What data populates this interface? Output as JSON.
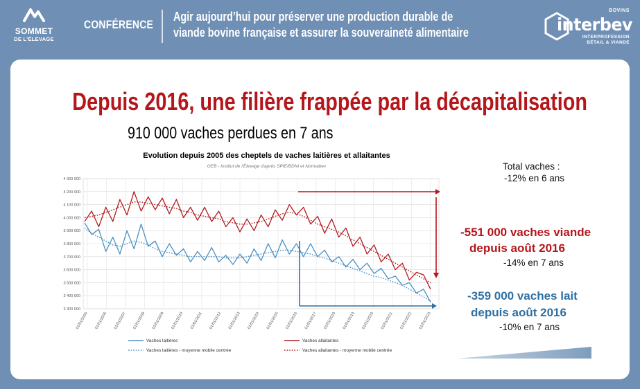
{
  "header": {
    "logo_left_line1": "SOMMET",
    "logo_left_line2": "DE L'ÉLEVAGE",
    "section_label": "CONFÉRENCE",
    "headline_line1": "Agir aujourd’hui pour préserver une production durable de",
    "headline_line2": "viande bovine française et assurer la souveraineté alimentaire",
    "logo_right_top": "BOVINS",
    "logo_right_word": "interbev",
    "logo_right_sub1": "INTERPROFESSION",
    "logo_right_sub2": "BÉTAIL & VIANDE"
  },
  "slide": {
    "title": "Depuis 2016, une filière frappée par la décapitalisation",
    "subtitle": "910 000 vaches perdues en 7 ans"
  },
  "side_notes": {
    "total_label": "Total vaches :",
    "total_value": "-12% en 6 ans",
    "viande_line1": "-551 000 vaches viande",
    "viande_line2": "depuis août 2016",
    "viande_pct": "-14% en 7 ans",
    "lait_line1": "-359 000 vaches lait",
    "lait_line2": "depuis août 2016",
    "lait_pct": "-10% en 7 ans"
  },
  "colors": {
    "accent_red": "#b5161b",
    "dairy_blue": "#4a90c4",
    "suckler_red": "#b2191c",
    "arrow_blue": "#2f6fa2",
    "header_bg": "#6f8fb4"
  },
  "chart_data": {
    "type": "line",
    "title": "Evolution depuis 2005 des cheptels de vaches laitières et allaitantes",
    "subtitle": "GEB - Institut de l'Élevage d'après SPIE/BDNI et Normabev",
    "ylim": [
      3300000,
      4300000
    ],
    "y_ticks": [
      "3 300 000",
      "3 400 000",
      "3 500 000",
      "3 600 000",
      "3 700 000",
      "3 800 000",
      "3 900 000",
      "4 000 000",
      "4 100 000",
      "4 200 000",
      "4 300 000"
    ],
    "x_ticks": [
      "01/01/2005",
      "01/01/2006",
      "01/01/2007",
      "01/01/2008",
      "01/01/2009",
      "01/01/2010",
      "01/01/2011",
      "01/01/2012",
      "01/01/2013",
      "01/01/2014",
      "01/01/2015",
      "01/01/2016",
      "01/01/2017",
      "01/01/2018",
      "01/01/2019",
      "01/01/2020",
      "01/01/2021",
      "01/01/2022",
      "01/01/2023"
    ],
    "grid": true,
    "legend_position": "bottom",
    "series": [
      {
        "name": "Vaches laitières",
        "style": "solid",
        "color": "#4a90c4",
        "values": [
          3960000,
          3870000,
          3910000,
          3740000,
          3850000,
          3720000,
          3900000,
          3760000,
          3950000,
          3780000,
          3820000,
          3700000,
          3800000,
          3710000,
          3760000,
          3660000,
          3740000,
          3670000,
          3770000,
          3660000,
          3710000,
          3640000,
          3720000,
          3650000,
          3760000,
          3670000,
          3800000,
          3690000,
          3830000,
          3720000,
          3800000,
          3700000,
          3800000,
          3700000,
          3750000,
          3660000,
          3700000,
          3620000,
          3680000,
          3600000,
          3650000,
          3570000,
          3610000,
          3530000,
          3550000,
          3480000,
          3500000,
          3420000,
          3450000,
          3350000
        ]
      },
      {
        "name": "Vaches allaitantes",
        "style": "solid",
        "color": "#b2191c",
        "values": [
          3970000,
          4050000,
          3930000,
          4080000,
          3970000,
          4140000,
          4020000,
          4200000,
          4050000,
          4160000,
          4060000,
          4150000,
          4030000,
          4140000,
          4000000,
          4080000,
          3980000,
          4080000,
          3970000,
          4050000,
          3930000,
          4000000,
          3890000,
          3990000,
          3900000,
          4020000,
          3930000,
          4060000,
          3980000,
          4100000,
          4020000,
          4080000,
          3950000,
          4010000,
          3880000,
          3990000,
          3850000,
          3920000,
          3780000,
          3850000,
          3720000,
          3790000,
          3660000,
          3720000,
          3600000,
          3650000,
          3520000,
          3580000,
          3560000,
          3450000
        ]
      },
      {
        "name": "Vaches laitières - moyenne mobile centrée",
        "style": "dotted",
        "color": "#4a90c4",
        "values": [
          3920000,
          3880000,
          3850000,
          3820000,
          3790000,
          3780000,
          3800000,
          3820000,
          3810000,
          3790000,
          3760000,
          3740000,
          3730000,
          3720000,
          3710000,
          3700000,
          3700000,
          3700000,
          3700000,
          3700000,
          3690000,
          3690000,
          3690000,
          3700000,
          3710000,
          3720000,
          3730000,
          3740000,
          3750000,
          3750000,
          3740000,
          3730000,
          3720000,
          3700000,
          3690000,
          3670000,
          3650000,
          3630000,
          3610000,
          3590000,
          3570000,
          3550000,
          3540000,
          3520000,
          3500000,
          3480000,
          3450000,
          3420000,
          3390000,
          3360000
        ]
      },
      {
        "name": "Vaches allaitantes - moyenne mobile centrée",
        "style": "dotted",
        "color": "#b2191c",
        "values": [
          4000000,
          4010000,
          4020000,
          4040000,
          4060000,
          4080000,
          4100000,
          4120000,
          4120000,
          4110000,
          4100000,
          4090000,
          4080000,
          4070000,
          4050000,
          4040000,
          4020000,
          4010000,
          4000000,
          3990000,
          3970000,
          3960000,
          3950000,
          3950000,
          3960000,
          3970000,
          3990000,
          4010000,
          4030000,
          4040000,
          4030000,
          4010000,
          3980000,
          3950000,
          3930000,
          3910000,
          3890000,
          3860000,
          3830000,
          3800000,
          3770000,
          3740000,
          3710000,
          3680000,
          3650000,
          3620000,
          3590000,
          3560000,
          3530000,
          3500000
        ]
      }
    ]
  }
}
